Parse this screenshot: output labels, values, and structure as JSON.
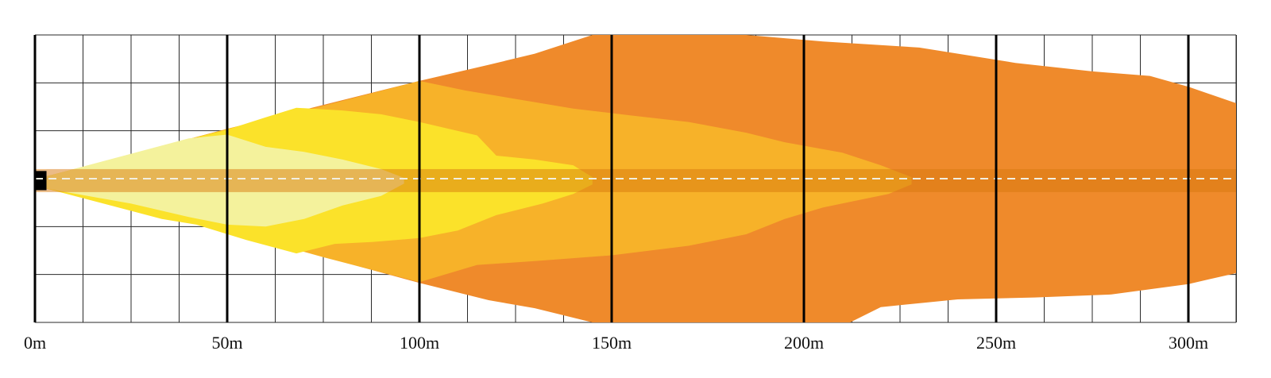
{
  "chart_data": {
    "type": "area",
    "title": "",
    "xlabel": "",
    "ylabel": "",
    "x_unit": "m",
    "xlim": [
      0,
      313
    ],
    "ylim": [
      -37.5,
      37.5
    ],
    "x_major_ticks": [
      0,
      50,
      100,
      150,
      200,
      250,
      300
    ],
    "x_tick_labels": [
      "0m",
      "50m",
      "100m",
      "150m",
      "200m",
      "250m",
      "300m"
    ],
    "x_minor_step": 12.5,
    "y_grid_step": 12.5,
    "grid": true,
    "zones": [
      {
        "name": "outer zone",
        "color": "#EF8A2B",
        "upper": [
          [
            3,
            0.6
          ],
          [
            50,
            13
          ],
          [
            100,
            25.5
          ],
          [
            118,
            29.7
          ],
          [
            130,
            32.6
          ],
          [
            145,
            37.5
          ],
          [
            185,
            37.5
          ],
          [
            205,
            35.8
          ],
          [
            230,
            34.2
          ],
          [
            255,
            30.2
          ],
          [
            275,
            28
          ],
          [
            290,
            26.8
          ],
          [
            300,
            24
          ],
          [
            313,
            19.5
          ]
        ],
        "lower": [
          [
            313,
            -24.5
          ],
          [
            300,
            -27.5
          ],
          [
            280,
            -30.2
          ],
          [
            260,
            -31
          ],
          [
            240,
            -31.5
          ],
          [
            220,
            -33.5
          ],
          [
            212,
            -37.5
          ],
          [
            145,
            -37.5
          ],
          [
            130,
            -33.8
          ],
          [
            118,
            -31.7
          ],
          [
            100,
            -27.2
          ],
          [
            50,
            -13.5
          ],
          [
            3,
            -2.6
          ]
        ]
      },
      {
        "name": "mid zone",
        "color": "#F7B229",
        "upper": [
          [
            3,
            0.6
          ],
          [
            50,
            13
          ],
          [
            75,
            19
          ],
          [
            100,
            25.5
          ],
          [
            112,
            23
          ],
          [
            125,
            20.8
          ],
          [
            140,
            18.3
          ],
          [
            155,
            16.5
          ],
          [
            170,
            14.8
          ],
          [
            185,
            12
          ],
          [
            195,
            9.5
          ],
          [
            210,
            6.8
          ],
          [
            220,
            3.5
          ],
          [
            228,
            0.4
          ]
        ],
        "lower": [
          [
            228,
            -1.5
          ],
          [
            222,
            -4
          ],
          [
            205,
            -7.5
          ],
          [
            195,
            -10.5
          ],
          [
            185,
            -14.5
          ],
          [
            170,
            -17.5
          ],
          [
            150,
            -20
          ],
          [
            130,
            -21.5
          ],
          [
            115,
            -22.5
          ],
          [
            100,
            -27
          ],
          [
            75,
            -20.5
          ],
          [
            50,
            -13.5
          ],
          [
            3,
            -2.6
          ]
        ]
      },
      {
        "name": "inner zone",
        "color": "#FBE22A",
        "upper": [
          [
            3,
            0.6
          ],
          [
            33,
            8.5
          ],
          [
            50,
            12.8
          ],
          [
            60,
            16
          ],
          [
            68,
            18.5
          ],
          [
            80,
            17.8
          ],
          [
            90,
            16.8
          ],
          [
            100,
            14.8
          ],
          [
            115,
            11.3
          ],
          [
            120,
            6
          ],
          [
            130,
            5
          ],
          [
            140,
            3.5
          ],
          [
            145,
            0.4
          ]
        ],
        "lower": [
          [
            145,
            -1.5
          ],
          [
            140,
            -4
          ],
          [
            132,
            -6.5
          ],
          [
            120,
            -9.5
          ],
          [
            110,
            -13.5
          ],
          [
            100,
            -15.5
          ],
          [
            88,
            -16.5
          ],
          [
            78,
            -17
          ],
          [
            68,
            -19.5
          ],
          [
            55,
            -16
          ],
          [
            42,
            -12
          ],
          [
            33,
            -10.5
          ],
          [
            3,
            -2.6
          ]
        ]
      },
      {
        "name": "core zone",
        "color": "#F4F29C",
        "upper": [
          [
            3,
            0.6
          ],
          [
            25,
            6.5
          ],
          [
            40,
            10.5
          ],
          [
            50,
            11.5
          ],
          [
            60,
            8.3
          ],
          [
            70,
            7
          ],
          [
            80,
            5
          ],
          [
            90,
            2.5
          ],
          [
            96,
            0.2
          ]
        ],
        "lower": [
          [
            96,
            -1.3
          ],
          [
            90,
            -4.5
          ],
          [
            80,
            -7
          ],
          [
            70,
            -10.5
          ],
          [
            60,
            -12.5
          ],
          [
            50,
            -12
          ],
          [
            40,
            -10
          ],
          [
            25,
            -6.5
          ],
          [
            3,
            -2.6
          ]
        ]
      }
    ],
    "center_band": {
      "y_min": -3.5,
      "y_max": 2.5,
      "color": "#D8780E",
      "opacity": 0.5
    },
    "source_marker": {
      "x_start": 0,
      "x_end": 3,
      "y_min": -3,
      "y_max": 2,
      "color": "#000000"
    },
    "centerline": {
      "y": 0,
      "style": "dashed",
      "color": "#F2EFE0"
    }
  }
}
